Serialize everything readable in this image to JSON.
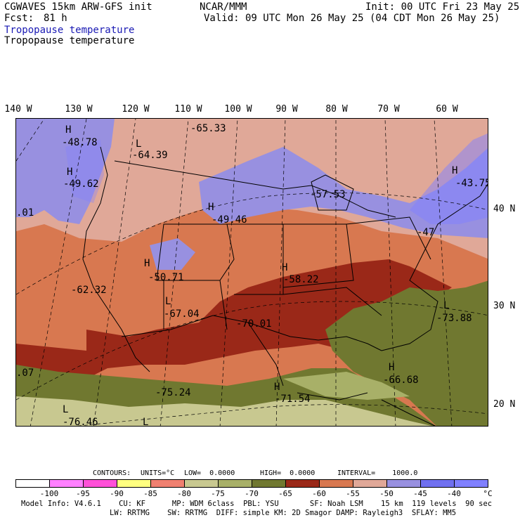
{
  "header": {
    "model_title": "CGWAVES 15km ARW-GFS init",
    "forecast_label": "Fcst:",
    "forecast_hours": "81 h",
    "center": "NCAR/MMM",
    "init_time": "Init: 00 UTC Fri 23 May 25",
    "valid_time": "Valid: 09 UTC Mon 26 May 25 (04 CDT Mon 26 May 25)",
    "field_title_blue": "Tropopause temperature",
    "field_title_black": "Tropopause temperature"
  },
  "longitude_labels": [
    "140 W",
    "130 W",
    "120 W",
    "110 W",
    "100 W",
    "90 W",
    "80 W",
    "70 W",
    "60 W"
  ],
  "latitude_labels": [
    "40 N",
    "30 N",
    "20 N"
  ],
  "map_labels": [
    {
      "type": "H",
      "value": "-48.78"
    },
    {
      "type": "H",
      "value": "-49.62"
    },
    {
      "type": "L",
      "value": "-64.39"
    },
    {
      "type": "",
      "value": "-65.33"
    },
    {
      "type": "H",
      "value": "-49.46"
    },
    {
      "type": "",
      "value": "-57.53"
    },
    {
      "type": "H",
      "value": "-43.75"
    },
    {
      "type": "",
      "value": "-47"
    },
    {
      "type": "",
      "value": ".01"
    },
    {
      "type": "H",
      "value": "-50.71"
    },
    {
      "type": "",
      "value": "-62.32"
    },
    {
      "type": "L",
      "value": "-67.04"
    },
    {
      "type": "H",
      "value": "-58.22"
    },
    {
      "type": "",
      "value": "-70.01"
    },
    {
      "type": "L",
      "value": "-73.88"
    },
    {
      "type": "H",
      "value": "-66.68"
    },
    {
      "type": "",
      "value": ".07"
    },
    {
      "type": "",
      "value": "-75.24"
    },
    {
      "type": "H",
      "value": "-71.54"
    },
    {
      "type": "L",
      "value": "-76.46"
    },
    {
      "type": "L",
      "value": ""
    }
  ],
  "contours": {
    "label": "CONTOURS:",
    "units": "UNITS=°C",
    "low": "LOW=  0.0000",
    "high": "HIGH=  0.0000",
    "interval": "INTERVAL=    1000.0"
  },
  "colorbar": {
    "colors": [
      "#ffffff",
      "#ff80ff",
      "#ff50d8",
      "#ffff80",
      "#f08070",
      "#c8c890",
      "#a8b068",
      "#707830",
      "#9a2818",
      "#d87850",
      "#e0a898",
      "#9890e0",
      "#7070f0",
      "#8080ff"
    ],
    "ticks": [
      "-100",
      "-95",
      "-90",
      "-85",
      "-80",
      "-75",
      "-70",
      "-65",
      "-60",
      "-55",
      "-50",
      "-45",
      "-40"
    ],
    "unit": "°C"
  },
  "footer": {
    "line1": "Model Info: V4.6.1    CU: KF      MP: WDM 6class  PBL: YSU       SF: Noah LSM    15 km  119 levels  90 sec",
    "line2": "LW: RRTMG    SW: RRTMG  DIFF: simple KM: 2D Smagor DAMP: Rayleigh3  SFLAY: MM5"
  }
}
